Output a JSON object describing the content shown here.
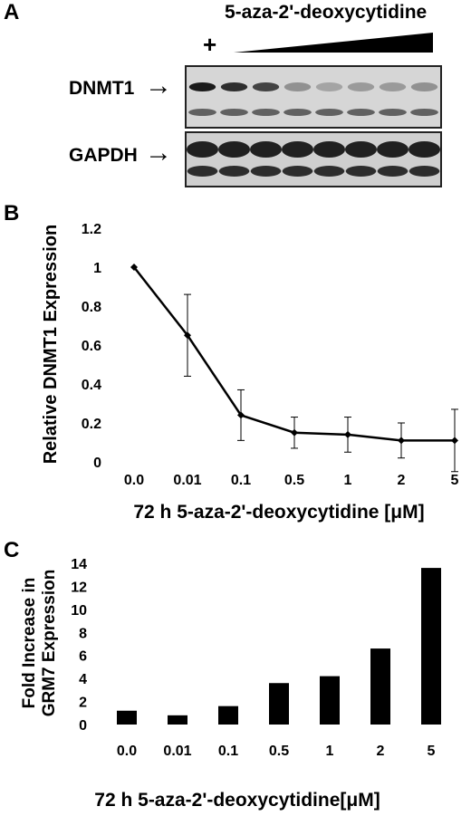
{
  "panels": {
    "a_label": "A",
    "b_label": "B",
    "c_label": "C"
  },
  "blot": {
    "treatment_label": "5-aza-2'-deoxycytidine",
    "control_mark": "+",
    "lane_count": 8,
    "row1_label": "DNMT1",
    "row2_label": "GAPDH",
    "arrow": "→"
  },
  "chart_data": [
    {
      "type": "line",
      "categories": [
        "0.0",
        "0.01",
        "0.1",
        "0.5",
        "1",
        "2",
        "5"
      ],
      "values": [
        1.0,
        0.65,
        0.24,
        0.15,
        0.14,
        0.11,
        0.11
      ],
      "error": [
        0.0,
        0.21,
        0.13,
        0.08,
        0.09,
        0.09,
        0.16
      ],
      "ylabel": "Relative DNMT1 Expression",
      "xlabel": "72 h 5-aza-2'-deoxycytidine [μM]",
      "ylim": [
        0,
        1.2
      ],
      "yticks": [
        "0",
        "0.2",
        "0.4",
        "0.6",
        "0.8",
        "1",
        "1.2"
      ],
      "grid": false
    },
    {
      "type": "bar",
      "categories": [
        "0.0",
        "0.01",
        "0.1",
        "0.5",
        "1",
        "2",
        "5"
      ],
      "values": [
        1.2,
        0.8,
        1.6,
        3.6,
        4.2,
        6.6,
        13.6
      ],
      "ylabel_line1": "Fold Increase in",
      "ylabel_line2": "GRM7 Expression",
      "xlabel": "72 h 5-aza-2'-deoxycytidine[μM]",
      "ylim": [
        0,
        14
      ],
      "yticks": [
        "0",
        "2",
        "4",
        "6",
        "8",
        "10",
        "12",
        "14"
      ],
      "grid": false
    }
  ]
}
